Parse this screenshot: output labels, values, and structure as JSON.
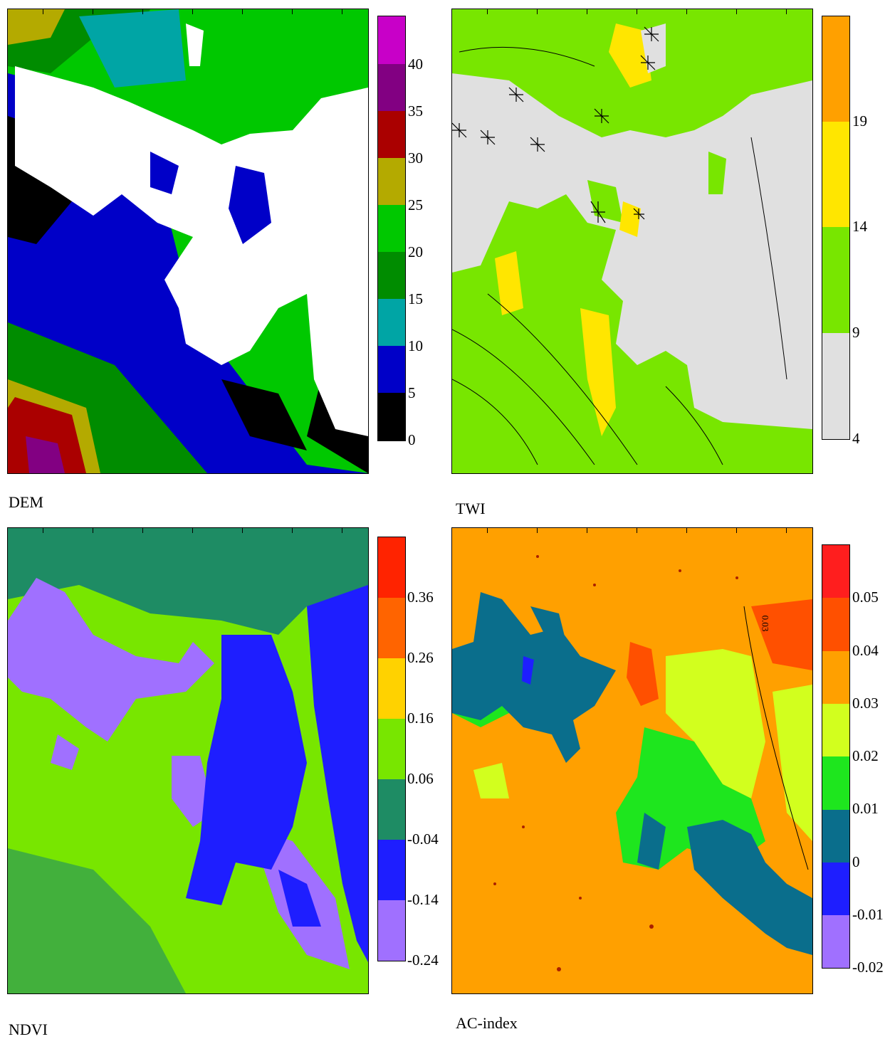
{
  "panels": {
    "dem": {
      "title": "DEM",
      "levels": [
        "0",
        "5",
        "10",
        "15",
        "20",
        "25",
        "30",
        "35",
        "40"
      ],
      "colors": [
        "#000000",
        "#0000c8",
        "#00a5a5",
        "#008c00",
        "#00c800",
        "#b4aa00",
        "#aa0000",
        "#820082",
        "#c800c8"
      ]
    },
    "twi": {
      "title": "TWI",
      "levels": [
        "4",
        "9",
        "14",
        "19"
      ],
      "colors": [
        "#e0e0e0",
        "#78e600",
        "#ffe600",
        "#ffa000"
      ]
    },
    "ndvi": {
      "title": "NDVI",
      "levels": [
        "-0.24",
        "-0.14",
        "-0.04",
        "0.06",
        "0.16",
        "0.26",
        "0.36"
      ],
      "colors": [
        "#a070ff",
        "#1e1eff",
        "#1e8c64",
        "#78e600",
        "#ffd200",
        "#ff6400",
        "#ff2300"
      ]
    },
    "ac": {
      "title": "AC-index",
      "levels": [
        "-0.02",
        "-0.01",
        "0",
        "0.01",
        "0.02",
        "0.03",
        "0.04",
        "0.05"
      ],
      "colors": [
        "#a070ff",
        "#1e1eff",
        "#0a6e8c",
        "#1ee61e",
        "#d2ff1e",
        "#ffa000",
        "#ff5000",
        "#ff1e1e"
      ],
      "contour_label": "0.03"
    }
  }
}
